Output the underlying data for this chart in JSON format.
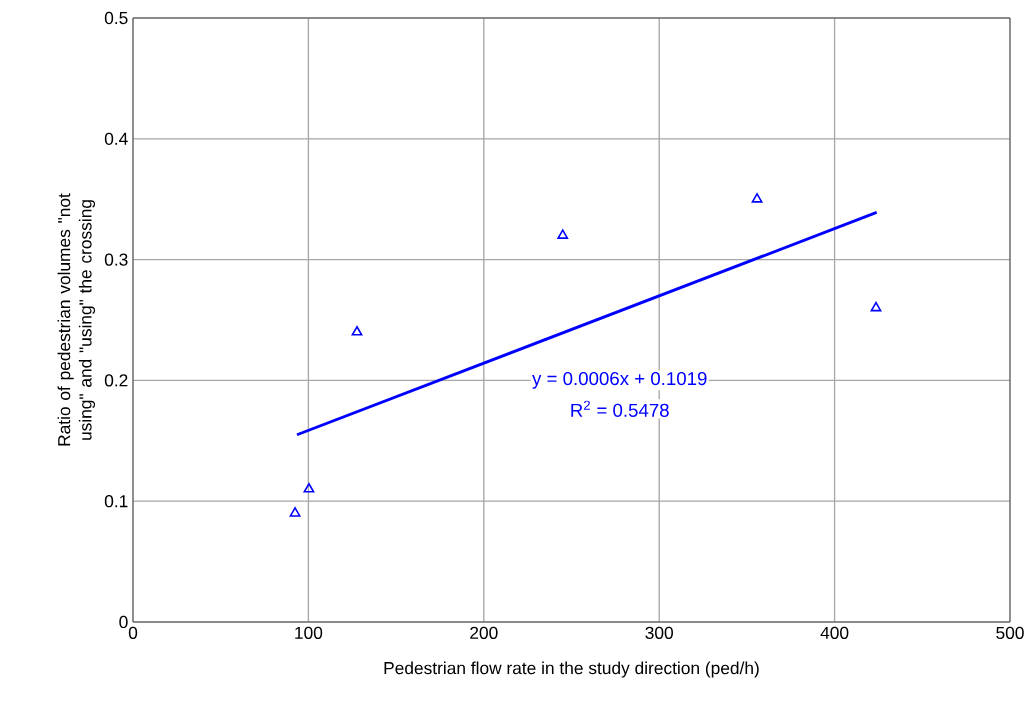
{
  "chart_data": {
    "type": "scatter",
    "xlabel": "Pedestrian flow rate in the study direction (ped/h)",
    "ylabel": "Ratio of pedestrian volumes \"not using\" and \"using\" the crossing",
    "xlim": [
      0,
      500
    ],
    "ylim": [
      0,
      0.5
    ],
    "xticks": [
      0,
      100,
      200,
      300,
      400,
      500
    ],
    "yticks": [
      0,
      0.1,
      0.2,
      0.3,
      0.4,
      0.5
    ],
    "grid": true,
    "series": [
      {
        "color": "#0000ff",
        "marker": "triangle",
        "x": [
          92.4,
          100.3,
          127.7,
          245,
          355.8,
          423.6
        ],
        "values": [
          0.09,
          0.11,
          0.24,
          0.32,
          0.35,
          0.26
        ]
      },
      {
        "type": "line",
        "color": "#0000ff",
        "marker": "none",
        "line_style": "solid",
        "x": [
          93.5,
          424
        ],
        "values": [
          0.155,
          0.339
        ]
      }
    ],
    "annotations": [
      "y = 0.0006x + 0.1019",
      "R$^{2}$ = 0.5478"
    ]
  }
}
